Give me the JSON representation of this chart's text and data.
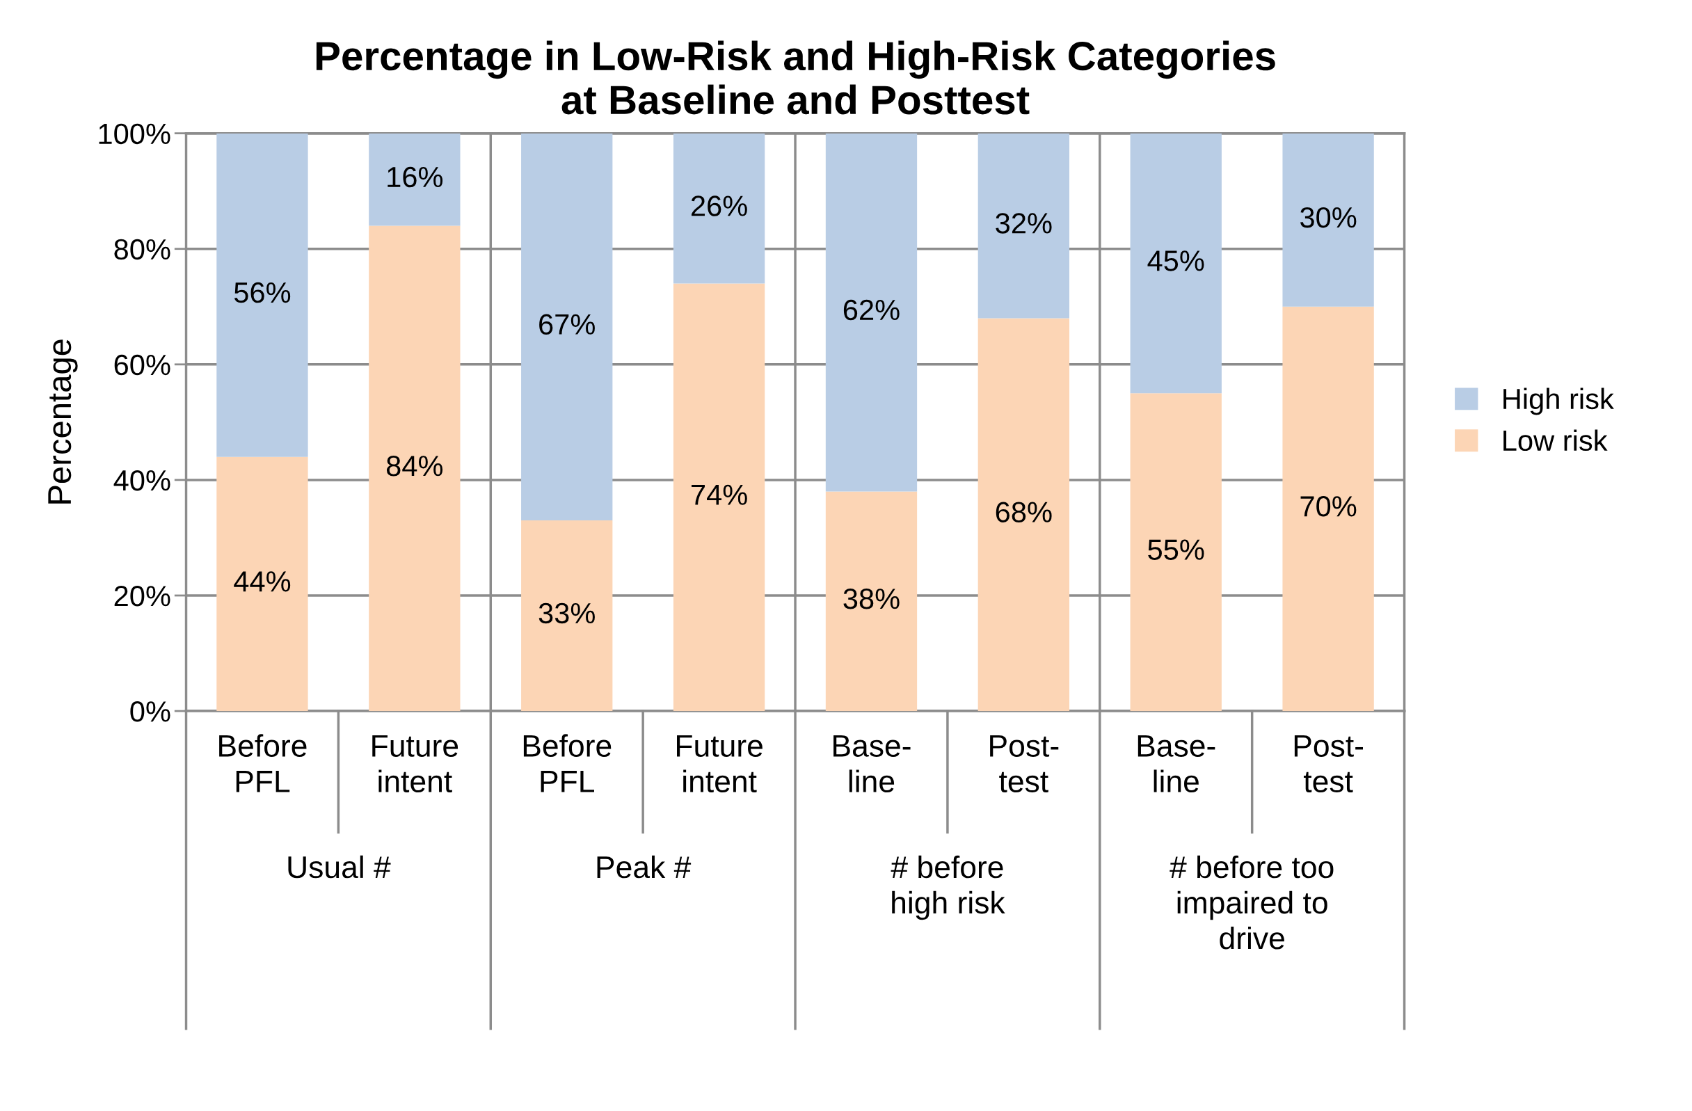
{
  "chart_data": {
    "type": "bar",
    "stacked": true,
    "title": "Percentage in Low-Risk and High-Risk Categories\nat Baseline and Posttest",
    "ylabel": "Percentage",
    "categories": [
      "Before\nPFL",
      "Future\nintent",
      "Before\nPFL",
      "Future\nintent",
      "Base-\nline",
      "Post-\ntest",
      "Base-\nline",
      "Post-\ntest"
    ],
    "series": [
      {
        "name": "Low risk",
        "color": "#fcd5b5",
        "values": [
          44,
          84,
          33,
          74,
          38,
          68,
          55,
          70
        ],
        "value_labels": [
          "44%",
          "84%",
          "33%",
          "74%",
          "38%",
          "68%",
          "55%",
          "70%"
        ]
      },
      {
        "name": "High risk",
        "color": "#b9cde5",
        "values": [
          56,
          16,
          67,
          26,
          62,
          32,
          45,
          30
        ],
        "value_labels": [
          "56%",
          "16%",
          "67%",
          "26%",
          "62%",
          "32%",
          "45%",
          "30%"
        ]
      }
    ],
    "annotations": [
      "Usual #",
      "Peak #",
      "# before\nhigh risk",
      "# before too\nimpaired to\ndrive"
    ],
    "ylim": [
      0,
      100
    ],
    "yticks": [
      {
        "value": 0,
        "label": "0%"
      },
      {
        "value": 20,
        "label": "20%"
      },
      {
        "value": 40,
        "label": "40%"
      },
      {
        "value": 60,
        "label": "60%"
      },
      {
        "value": 80,
        "label": "80%"
      },
      {
        "value": 100,
        "label": "100%"
      }
    ],
    "grid": "y",
    "legend": "right"
  }
}
